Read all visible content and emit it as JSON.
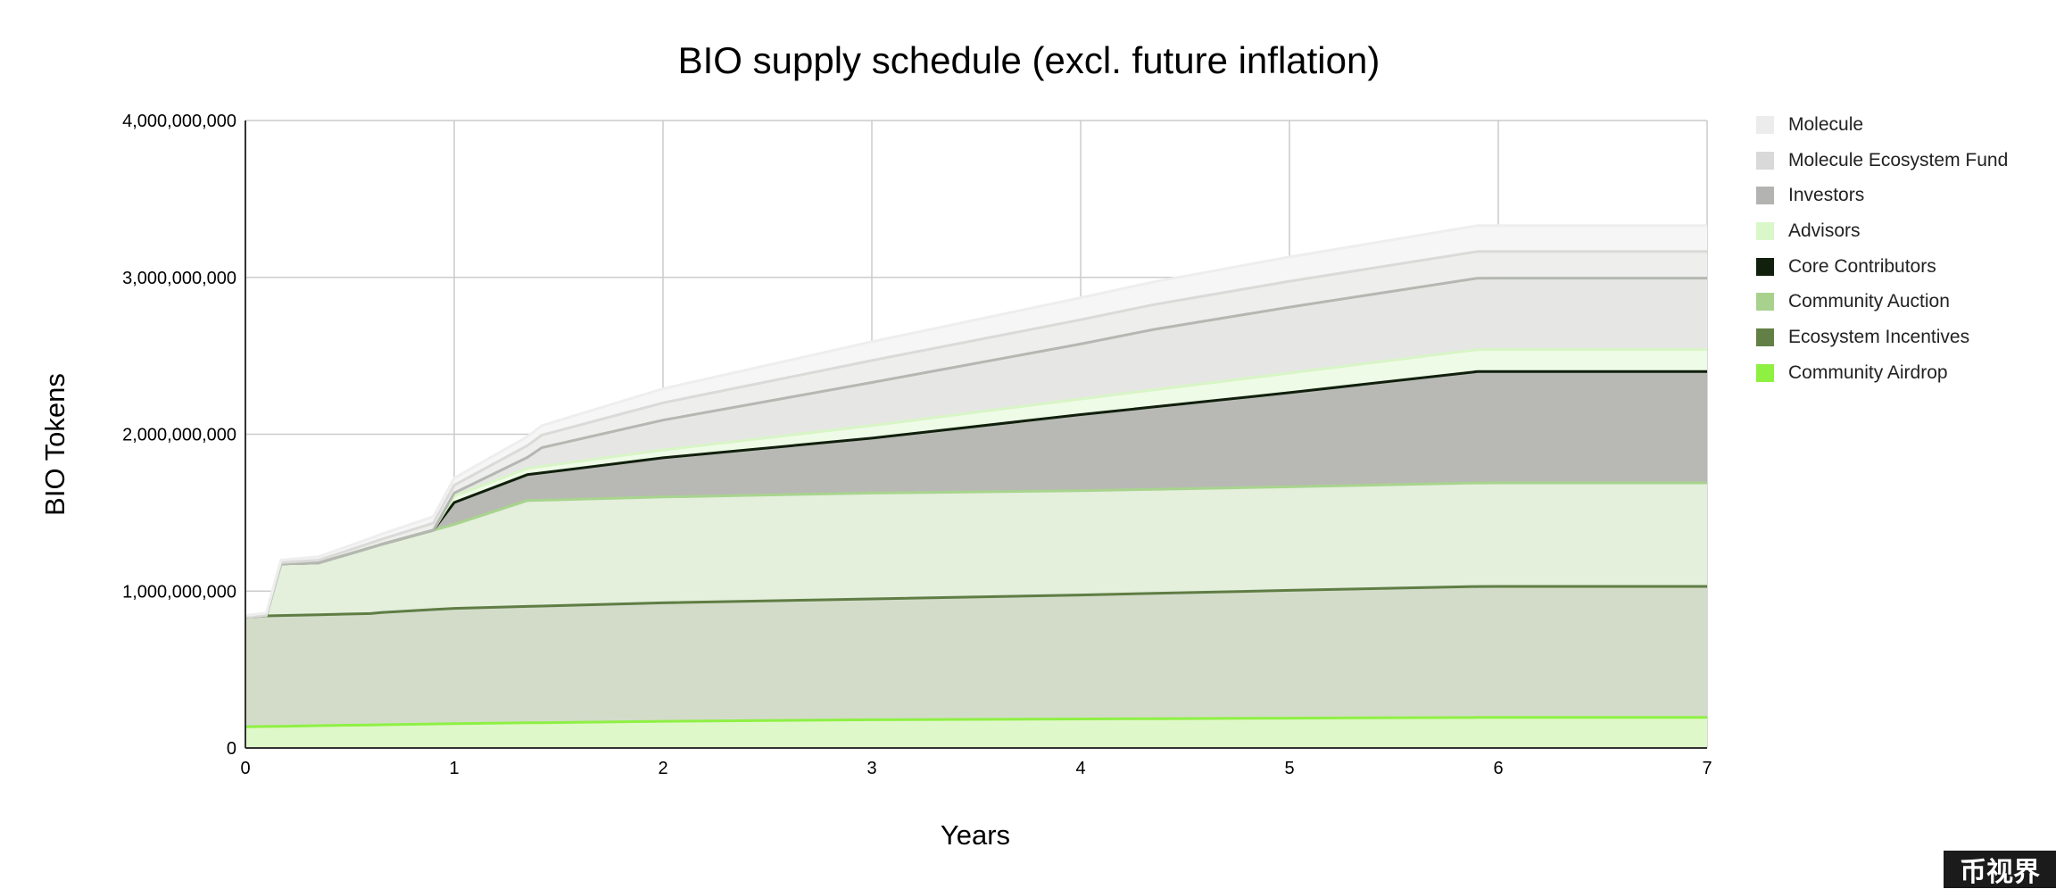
{
  "chart_data": {
    "type": "area",
    "stacked": true,
    "title": "BIO supply schedule (excl. future inflation)",
    "xlabel": "Years",
    "ylabel": "BIO Tokens",
    "xlim": [
      0,
      7
    ],
    "ylim": [
      0,
      4000000000
    ],
    "x_ticks": [
      "0",
      "1",
      "2",
      "3",
      "4",
      "5",
      "6",
      "7"
    ],
    "y_ticks": [
      "0",
      "1,000,000,000",
      "2,000,000,000",
      "3,000,000,000",
      "4,000,000,000"
    ],
    "grid": true,
    "legend_position": "right",
    "series": [
      {
        "name": "Community Airdrop",
        "color": "#8ef044",
        "fill": "#dff8c9",
        "points": [
          [
            0,
            135000000
          ],
          [
            1,
            155000000
          ],
          [
            2,
            170000000
          ],
          [
            3,
            180000000
          ],
          [
            4,
            185000000
          ],
          [
            5,
            190000000
          ],
          [
            6,
            195000000
          ],
          [
            7,
            195000000
          ]
        ]
      },
      {
        "name": "Ecosystem Incentives",
        "color": "#5f7d44",
        "fill": "#d3dcc9",
        "points": [
          [
            0,
            700000000
          ],
          [
            0.1,
            705000000
          ],
          [
            0.6,
            710000000
          ],
          [
            0.65,
            715000000
          ],
          [
            1,
            735000000
          ],
          [
            2,
            755000000
          ],
          [
            3,
            770000000
          ],
          [
            4,
            790000000
          ],
          [
            5,
            815000000
          ],
          [
            5.9,
            835000000
          ],
          [
            7,
            835000000
          ]
        ]
      },
      {
        "name": "Community Auction",
        "color": "#a8d48e",
        "fill": "#e4efdc",
        "points": [
          [
            0,
            0
          ],
          [
            0.1,
            0
          ],
          [
            0.17,
            330000000
          ],
          [
            0.35,
            330000000
          ],
          [
            0.6,
            420000000
          ],
          [
            1,
            535000000
          ],
          [
            1.35,
            675000000
          ],
          [
            2,
            675000000
          ],
          [
            3,
            675000000
          ],
          [
            4,
            665000000
          ],
          [
            5,
            660000000
          ],
          [
            6,
            660000000
          ],
          [
            7,
            660000000
          ]
        ]
      },
      {
        "name": "Core Contributors",
        "color": "#0f1f0c",
        "fill": "#b8b9b4",
        "points": [
          [
            0,
            0
          ],
          [
            0.9,
            0
          ],
          [
            1,
            140000000
          ],
          [
            1.35,
            165000000
          ],
          [
            2,
            250000000
          ],
          [
            3,
            350000000
          ],
          [
            4,
            485000000
          ],
          [
            5,
            600000000
          ],
          [
            5.9,
            710000000
          ],
          [
            7,
            710000000
          ]
        ]
      },
      {
        "name": "Advisors",
        "color": "#d8f5c6",
        "fill": "#eefbe6",
        "points": [
          [
            0,
            0
          ],
          [
            0.9,
            0
          ],
          [
            1,
            40000000
          ],
          [
            1.35,
            40000000
          ],
          [
            2,
            50000000
          ],
          [
            3,
            80000000
          ],
          [
            4,
            100000000
          ],
          [
            5,
            125000000
          ],
          [
            5.9,
            140000000
          ],
          [
            7,
            140000000
          ]
        ]
      },
      {
        "name": "Investors",
        "color": "#b5b7b1",
        "fill": "#e6e7e4",
        "points": [
          [
            0,
            0
          ],
          [
            0.9,
            0
          ],
          [
            1,
            20000000
          ],
          [
            1.35,
            70000000
          ],
          [
            1.42,
            120000000
          ],
          [
            2,
            190000000
          ],
          [
            3,
            275000000
          ],
          [
            4,
            350000000
          ],
          [
            4.35,
            385000000
          ],
          [
            5,
            420000000
          ],
          [
            5.9,
            455000000
          ],
          [
            7,
            455000000
          ]
        ]
      },
      {
        "name": "Molecule Ecosystem Fund",
        "color": "#dadad8",
        "fill": "#eeeeed",
        "points": [
          [
            0,
            0
          ],
          [
            1,
            50000000
          ],
          [
            1.42,
            80000000
          ],
          [
            2,
            110000000
          ],
          [
            3,
            140000000
          ],
          [
            4,
            155000000
          ],
          [
            5,
            165000000
          ],
          [
            5.9,
            170000000
          ],
          [
            7,
            170000000
          ]
        ]
      },
      {
        "name": "Molecule",
        "color": "#eeeeee",
        "fill": "#f6f6f6",
        "points": [
          [
            0,
            10000000
          ],
          [
            0.17,
            15000000
          ],
          [
            1,
            45000000
          ],
          [
            1.42,
            60000000
          ],
          [
            2,
            90000000
          ],
          [
            3,
            120000000
          ],
          [
            4,
            140000000
          ],
          [
            5,
            155000000
          ],
          [
            5.9,
            165000000
          ],
          [
            7,
            165000000
          ]
        ]
      }
    ]
  },
  "legend": [
    {
      "label": "Molecule",
      "color": "#ececec"
    },
    {
      "label": "Molecule Ecosystem Fund",
      "color": "#d9d9d9"
    },
    {
      "label": "Investors",
      "color": "#b3b3b1"
    },
    {
      "label": "Advisors",
      "color": "#d9f7c9"
    },
    {
      "label": "Core Contributors",
      "color": "#11200d"
    },
    {
      "label": "Community Auction",
      "color": "#a9d18e"
    },
    {
      "label": "Ecosystem Incentives",
      "color": "#628045"
    },
    {
      "label": "Community Airdrop",
      "color": "#8ef040"
    }
  ],
  "watermark": "币视界"
}
